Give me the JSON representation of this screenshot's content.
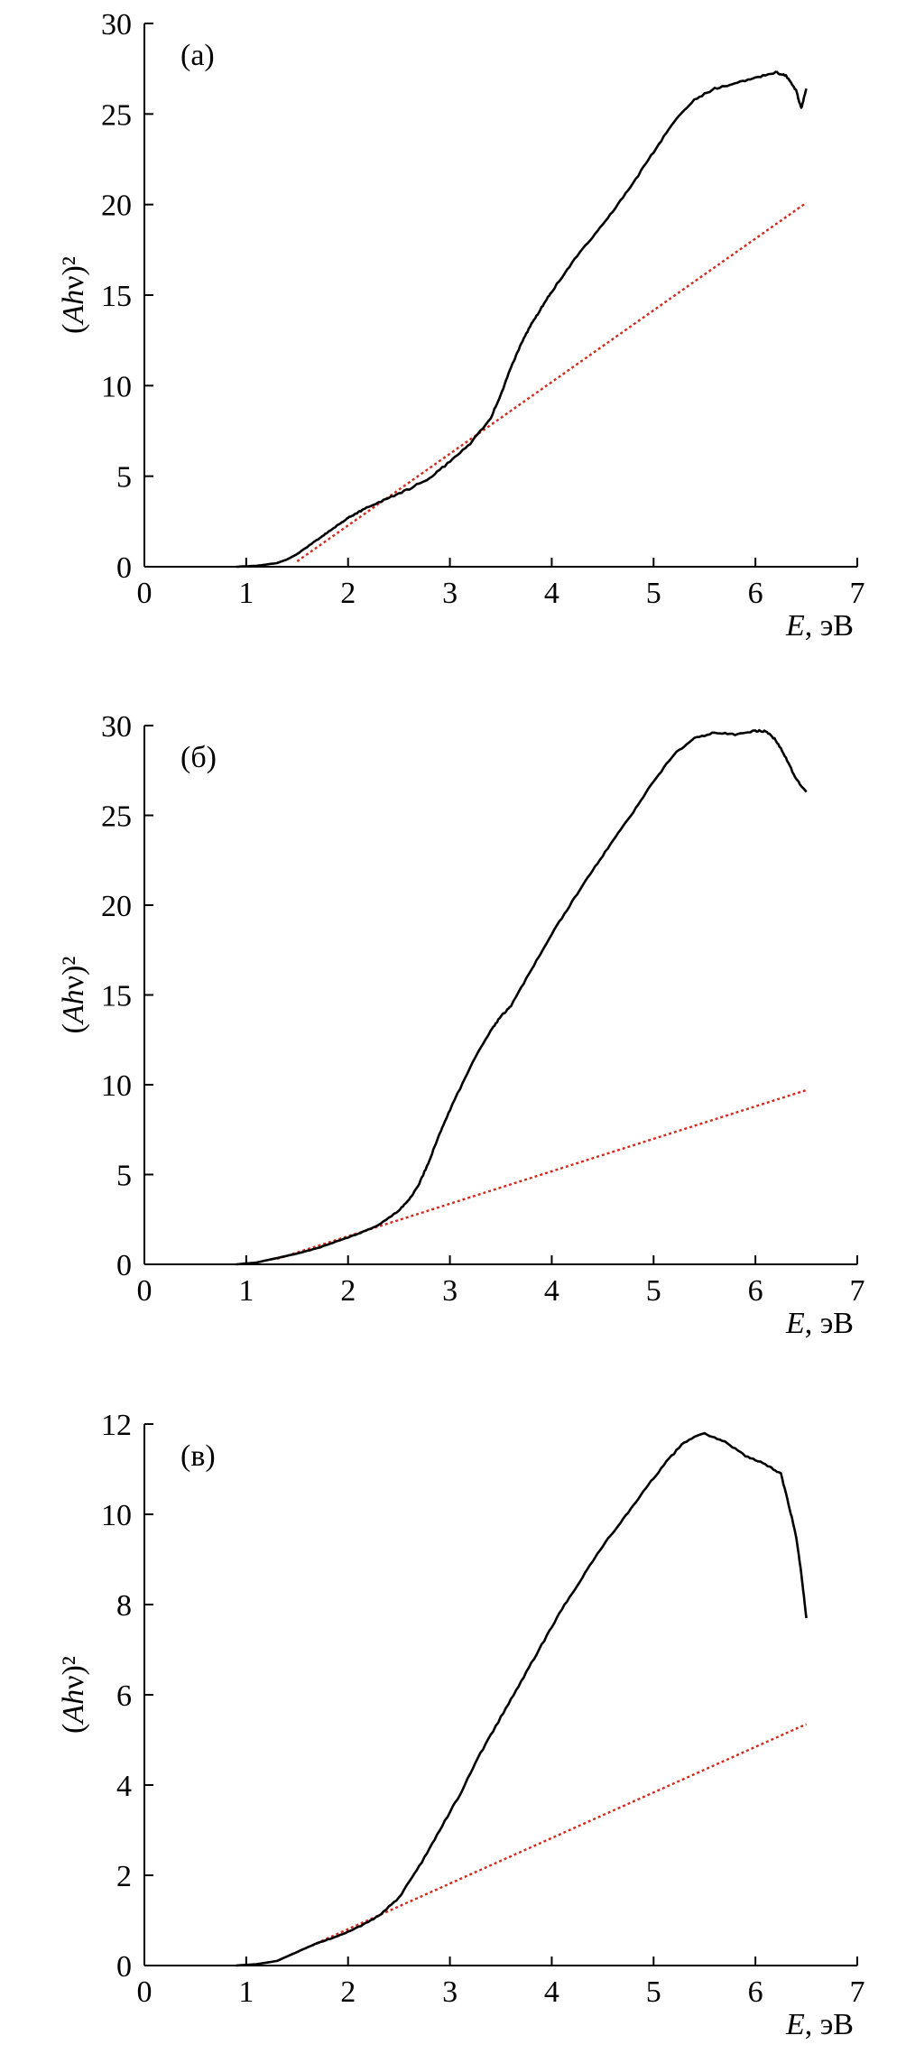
{
  "colors": {
    "curve": "#000000",
    "fit": "#d42a1c"
  },
  "chart_data": [
    {
      "type": "line",
      "panel_label": "(а)",
      "xlabel_italic": "E",
      "xlabel_rest": ", эВ",
      "ylabel": "(Ahν)²",
      "xlim": [
        0,
        7
      ],
      "ylim": [
        0,
        30
      ],
      "xticks": [
        0,
        1,
        2,
        3,
        4,
        5,
        6,
        7
      ],
      "yticks": [
        0,
        5,
        10,
        15,
        20,
        25,
        30
      ],
      "grid": false,
      "series": [
        {
          "x": [
            0.9,
            1.1,
            1.3,
            1.4,
            1.5,
            1.6,
            1.7,
            1.8,
            1.9,
            2.0,
            2.1,
            2.2,
            2.4,
            2.6,
            2.8,
            3.0,
            3.2,
            3.4,
            3.5,
            3.6,
            3.7,
            3.8,
            3.9,
            4.0,
            4.2,
            4.4,
            4.6,
            4.8,
            5.0,
            5.2,
            5.4,
            5.6,
            5.8,
            6.0,
            6.2,
            6.3,
            6.4,
            6.45,
            6.5
          ],
          "y": [
            0.0,
            0.05,
            0.2,
            0.4,
            0.7,
            1.1,
            1.5,
            1.9,
            2.3,
            2.7,
            3.0,
            3.3,
            3.8,
            4.3,
            4.9,
            5.8,
            6.8,
            8.2,
            9.5,
            11.0,
            12.3,
            13.4,
            14.3,
            15.2,
            16.8,
            18.2,
            19.6,
            21.2,
            22.9,
            24.6,
            25.8,
            26.4,
            26.7,
            27.0,
            27.3,
            27.1,
            26.3,
            25.3,
            26.4
          ]
        }
      ],
      "fit_line": {
        "x": [
          1.5,
          6.5
        ],
        "y": [
          0.3,
          20.1
        ]
      }
    },
    {
      "type": "line",
      "panel_label": "(б)",
      "xlabel_italic": "E",
      "xlabel_rest": ", эВ",
      "ylabel": "(Ahν)²",
      "xlim": [
        0,
        7
      ],
      "ylim": [
        0,
        30
      ],
      "xticks": [
        0,
        1,
        2,
        3,
        4,
        5,
        6,
        7
      ],
      "yticks": [
        0,
        5,
        10,
        15,
        20,
        25,
        30
      ],
      "grid": false,
      "series": [
        {
          "x": [
            0.9,
            1.1,
            1.3,
            1.5,
            1.7,
            1.9,
            2.1,
            2.3,
            2.5,
            2.6,
            2.7,
            2.8,
            2.9,
            3.0,
            3.2,
            3.4,
            3.5,
            3.6,
            3.8,
            4.0,
            4.2,
            4.4,
            4.6,
            4.8,
            5.0,
            5.2,
            5.4,
            5.6,
            5.8,
            6.0,
            6.1,
            6.2,
            6.3,
            6.4,
            6.5
          ],
          "y": [
            0.0,
            0.1,
            0.35,
            0.6,
            0.9,
            1.3,
            1.7,
            2.2,
            3.0,
            3.6,
            4.5,
            5.8,
            7.3,
            8.6,
            11.0,
            13.0,
            13.8,
            14.4,
            16.4,
            18.4,
            20.2,
            21.9,
            23.6,
            25.2,
            26.9,
            28.4,
            29.3,
            29.6,
            29.5,
            29.7,
            29.7,
            29.2,
            28.2,
            27.0,
            26.3
          ]
        }
      ],
      "fit_line": {
        "x": [
          1.3,
          6.5
        ],
        "y": [
          0.3,
          9.7
        ]
      }
    },
    {
      "type": "line",
      "panel_label": "(в)",
      "xlabel_italic": "E",
      "xlabel_rest": ", эВ",
      "ylabel": "(Ahν)²",
      "xlim": [
        0,
        7
      ],
      "ylim": [
        0,
        12
      ],
      "xticks": [
        0,
        1,
        2,
        3,
        4,
        5,
        6,
        7
      ],
      "yticks": [
        0,
        2,
        4,
        6,
        8,
        10,
        12
      ],
      "grid": false,
      "series": [
        {
          "x": [
            0.9,
            1.1,
            1.3,
            1.5,
            1.7,
            1.9,
            2.1,
            2.3,
            2.5,
            2.7,
            2.9,
            3.1,
            3.3,
            3.5,
            3.7,
            3.9,
            4.1,
            4.3,
            4.5,
            4.7,
            4.9,
            5.1,
            5.3,
            5.5,
            5.7,
            5.9,
            6.1,
            6.25,
            6.35,
            6.4,
            6.45,
            6.5
          ],
          "y": [
            0.0,
            0.03,
            0.1,
            0.3,
            0.5,
            0.65,
            0.85,
            1.1,
            1.5,
            2.2,
            3.0,
            3.8,
            4.7,
            5.5,
            6.3,
            7.1,
            7.9,
            8.6,
            9.3,
            9.9,
            10.5,
            11.1,
            11.6,
            11.8,
            11.6,
            11.3,
            11.1,
            10.9,
            10.0,
            9.5,
            8.7,
            7.7
          ]
        }
      ],
      "fit_line": {
        "x": [
          1.3,
          6.5
        ],
        "y": [
          0.1,
          5.35
        ]
      }
    }
  ]
}
